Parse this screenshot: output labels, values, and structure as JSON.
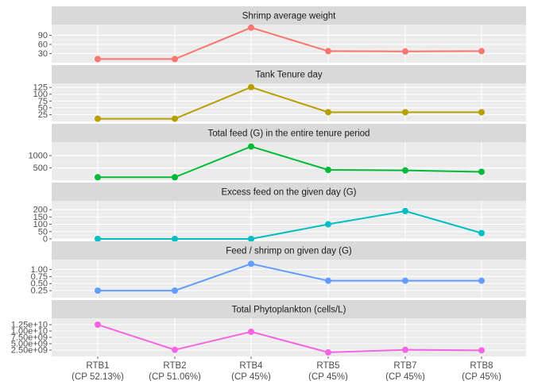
{
  "chart_data": {
    "type": "line",
    "layout": "faceted-vertical",
    "grid": true,
    "legend": "none",
    "categories": [
      "RTB1",
      "RTB2",
      "RTB4",
      "RTB5",
      "RTB7",
      "RTB8"
    ],
    "category_sublabels": [
      "(CP 52.13%)",
      "(CP 51.06%)",
      "(CP 45%)",
      "(CP 45%)",
      "(CP 45%)",
      "(CP 45%)"
    ],
    "facets": [
      {
        "title": "Shrimp average weight",
        "color": "#F8766D",
        "ylim": [
          0,
          125
        ],
        "yticks": [
          30,
          60,
          90
        ],
        "ytick_labels": [
          "30",
          "60",
          "90"
        ],
        "values": [
          12,
          12,
          115,
          38,
          37,
          38
        ]
      },
      {
        "title": "Tank Tenure day",
        "color": "#B79F00",
        "ylim": [
          0,
          140
        ],
        "yticks": [
          25,
          50,
          75,
          100,
          125
        ],
        "ytick_labels": [
          "25",
          "50",
          "75",
          "100",
          "125"
        ],
        "values": [
          10,
          10,
          126,
          34,
          34,
          34
        ]
      },
      {
        "title": "Total feed (G) in the entire tenure period",
        "color": "#00BA38",
        "ylim": [
          0,
          1550
        ],
        "yticks": [
          500,
          1000
        ],
        "ytick_labels": [
          "500",
          "1000"
        ],
        "values": [
          120,
          120,
          1370,
          420,
          400,
          340
        ]
      },
      {
        "title": "Excess feed on the given day (G)",
        "color": "#00BFC4",
        "ylim": [
          0,
          260
        ],
        "yticks": [
          0,
          50,
          100,
          150,
          200
        ],
        "ytick_labels": [
          "0",
          "50",
          "100",
          "150",
          "200"
        ],
        "values": [
          0,
          0,
          0,
          100,
          190,
          40
        ]
      },
      {
        "title": "Feed / shrimp on given day (G)",
        "color": "#619CFF",
        "ylim": [
          0,
          1.35
        ],
        "yticks": [
          0.25,
          0.5,
          0.75,
          1.0
        ],
        "ytick_labels": [
          "0.25",
          "0.50",
          "0.75",
          "1.00"
        ],
        "values": [
          0.25,
          0.25,
          1.2,
          0.6,
          0.6,
          0.6
        ]
      },
      {
        "title": "Total Phytoplankton (cells/L)",
        "color": "#F564E3",
        "ylim": [
          0,
          15000000000.0
        ],
        "yticks": [
          2500000000.0,
          5000000000.0,
          7500000000.0,
          10000000000.0,
          12500000000.0
        ],
        "ytick_labels": [
          "2.50e+09",
          "5.00e+09",
          "7.50e+09",
          "1.00e+10",
          "1.25e+10"
        ],
        "values": [
          12500000000.0,
          2600000000.0,
          9700000000.0,
          1600000000.0,
          2600000000.0,
          2400000000.0
        ]
      }
    ]
  }
}
